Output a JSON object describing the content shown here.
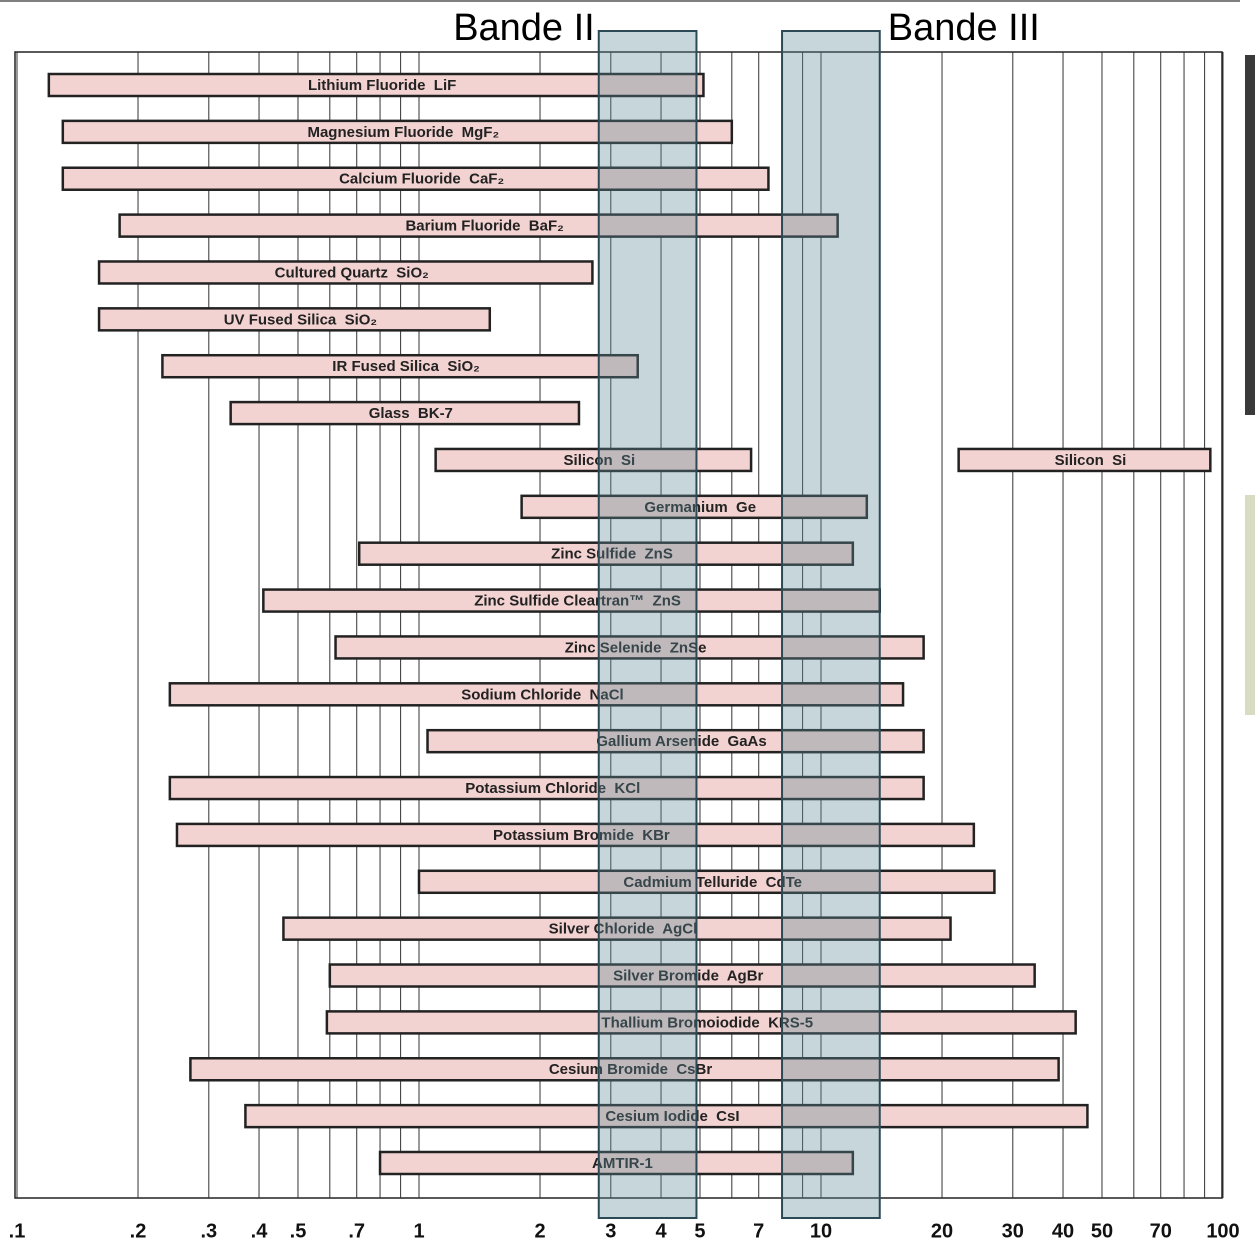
{
  "chart_data": {
    "type": "range-bar",
    "log_x": true,
    "xlim": [
      0.1,
      100
    ],
    "xticks": [
      {
        "value": 0.1,
        "label": ".1"
      },
      {
        "value": 0.2,
        "label": ".2"
      },
      {
        "value": 0.3,
        "label": ".3"
      },
      {
        "value": 0.4,
        "label": ".4"
      },
      {
        "value": 0.5,
        "label": ".5"
      },
      {
        "value": 0.7,
        "label": ".7"
      },
      1,
      2,
      3,
      4,
      5,
      7,
      10,
      20,
      30,
      40,
      50,
      70,
      100
    ],
    "minor_xticks": [
      0.6,
      0.8,
      0.9,
      6,
      8,
      9,
      60,
      80,
      90
    ],
    "bar_color": "#f3d3d1",
    "band_color": "#5f8a96",
    "rows": [
      {
        "segments": [
          {
            "label": "Lithium Fluoride  LiF",
            "start": 0.12,
            "end": 5.1
          }
        ]
      },
      {
        "segments": [
          {
            "label": "Magnesium Fluoride  MgF₂",
            "start": 0.13,
            "end": 6
          }
        ]
      },
      {
        "segments": [
          {
            "label": "Calcium Fluoride  CaF₂",
            "start": 0.13,
            "end": 7.4
          }
        ]
      },
      {
        "segments": [
          {
            "label": "Barium Fluoride  BaF₂",
            "start": 0.18,
            "end": 11
          }
        ]
      },
      {
        "segments": [
          {
            "label": "Cultured Quartz  SiO₂",
            "start": 0.16,
            "end": 2.7
          }
        ]
      },
      {
        "segments": [
          {
            "label": "UV Fused Silica  SiO₂",
            "start": 0.16,
            "end": 1.5
          }
        ]
      },
      {
        "segments": [
          {
            "label": "IR Fused Silica  SiO₂",
            "start": 0.23,
            "end": 3.5
          }
        ]
      },
      {
        "segments": [
          {
            "label": "Glass  BK-7",
            "start": 0.34,
            "end": 2.5
          }
        ]
      },
      {
        "segments": [
          {
            "label": "Silicon  Si",
            "start": 1.1,
            "end": 6.7
          },
          {
            "label": "Silicon  Si",
            "start": 22,
            "end": 93
          }
        ]
      },
      {
        "segments": [
          {
            "label": "Germanium  Ge",
            "start": 1.8,
            "end": 13
          }
        ]
      },
      {
        "segments": [
          {
            "label": "Zinc Sulfide  ZnS",
            "start": 0.71,
            "end": 12
          }
        ]
      },
      {
        "segments": [
          {
            "label": "Zinc Sulfide Cleartran™  ZnS",
            "start": 0.41,
            "end": 14
          }
        ]
      },
      {
        "segments": [
          {
            "label": "Zinc Selenide  ZnSe",
            "start": 0.62,
            "end": 18
          }
        ]
      },
      {
        "segments": [
          {
            "label": "Sodium Chloride  NaCl",
            "start": 0.24,
            "end": 16
          }
        ]
      },
      {
        "segments": [
          {
            "label": "Gallium Arsenide  GaAs",
            "start": 1.05,
            "end": 18
          }
        ]
      },
      {
        "segments": [
          {
            "label": "Potassium Chloride  KCl",
            "start": 0.24,
            "end": 18
          }
        ]
      },
      {
        "segments": [
          {
            "label": "Potassium Bromide  KBr",
            "start": 0.25,
            "end": 24
          }
        ]
      },
      {
        "segments": [
          {
            "label": "Cadmium Telluride  CdTe",
            "start": 1.0,
            "end": 27
          }
        ]
      },
      {
        "segments": [
          {
            "label": "Silver Chloride  AgCl",
            "start": 0.46,
            "end": 21
          }
        ]
      },
      {
        "segments": [
          {
            "label": "Silver Bromide  AgBr",
            "start": 0.6,
            "end": 34
          }
        ]
      },
      {
        "segments": [
          {
            "label": "Thallium Bromoiodide  KRS-5",
            "start": 0.59,
            "end": 43
          }
        ]
      },
      {
        "segments": [
          {
            "label": "Cesium Bromide  CsBr",
            "start": 0.27,
            "end": 39
          }
        ]
      },
      {
        "segments": [
          {
            "label": "Cesium Iodide  CsI",
            "start": 0.37,
            "end": 46
          }
        ]
      },
      {
        "segments": [
          {
            "label": "AMTIR-1",
            "start": 0.8,
            "end": 12
          }
        ]
      }
    ],
    "bands": [
      {
        "label": "Bande II",
        "start": 2.8,
        "end": 4.9
      },
      {
        "label": "Bande III",
        "start": 8,
        "end": 14
      }
    ]
  }
}
